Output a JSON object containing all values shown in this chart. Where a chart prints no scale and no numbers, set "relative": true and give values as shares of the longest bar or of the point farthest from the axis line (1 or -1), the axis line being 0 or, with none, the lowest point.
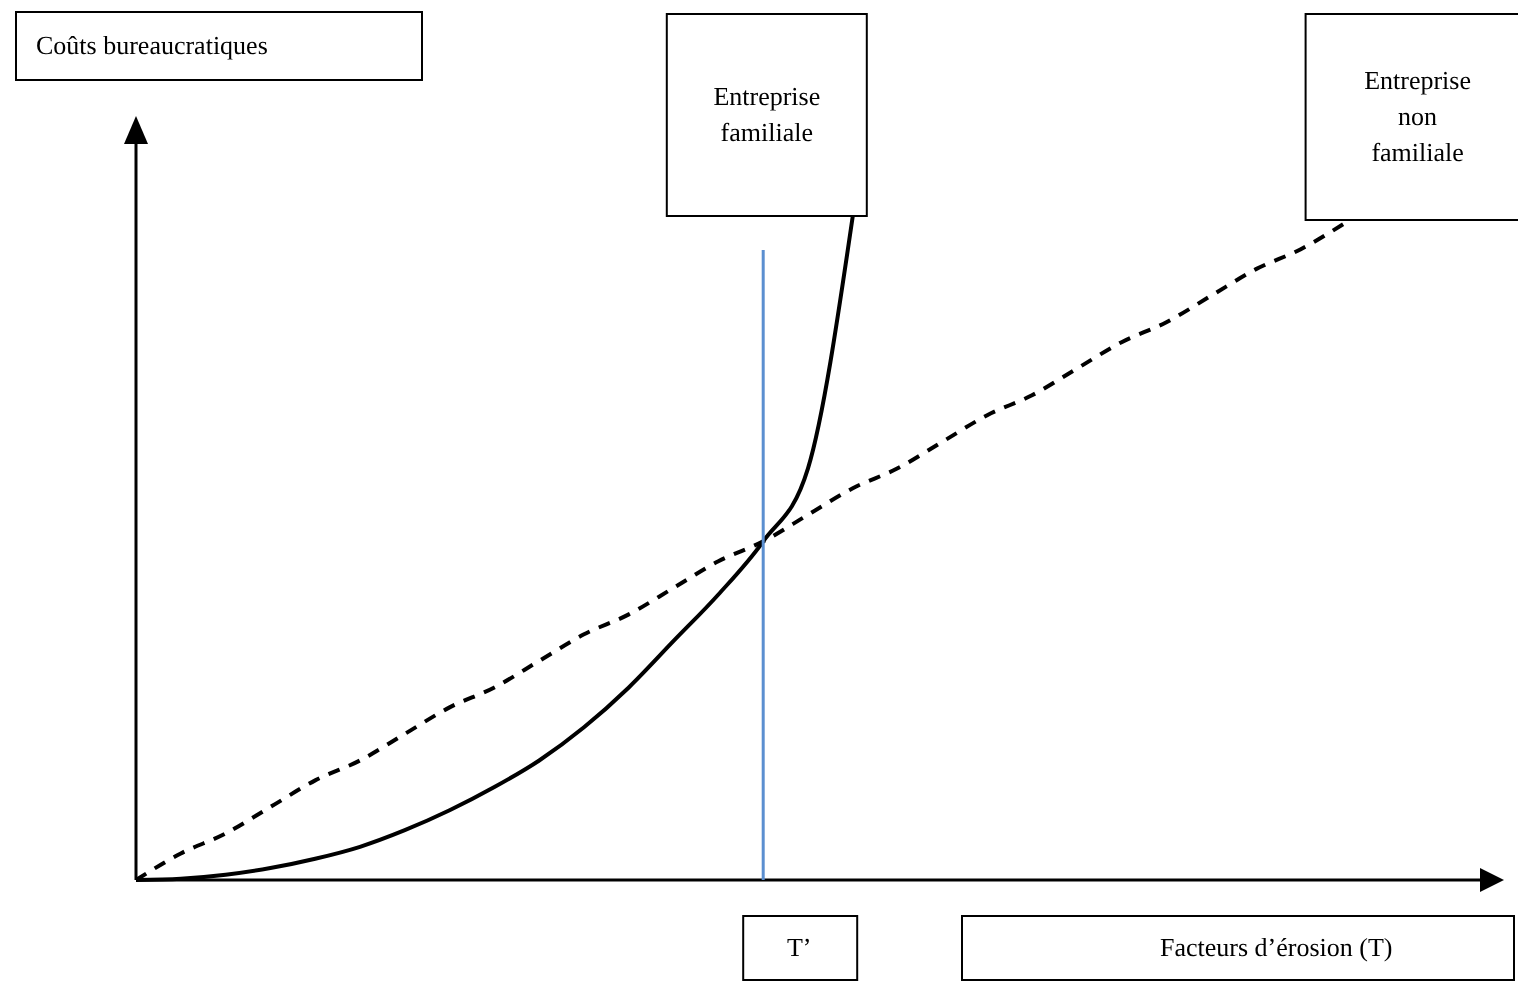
{
  "chart_data": {
    "type": "line",
    "relative": true,
    "xlabel": "Facteurs d’érosion (T)",
    "annotations": [
      "Coûts bureaucratiques",
      "T’"
    ],
    "categories": [
      null,
      null,
      null,
      null,
      null,
      null,
      null,
      null,
      null,
      null,
      null,
      null,
      null,
      null,
      null,
      null,
      null,
      null,
      null,
      null,
      null,
      null,
      null,
      null,
      null,
      null,
      null,
      null,
      null,
      null,
      null
    ],
    "series": [
      {
        "name": "Entreprise familiale",
        "color": "#000000",
        "line_style": "solid",
        "values": [
          0,
          0.002,
          0.008,
          0.018,
          0.032,
          0.05,
          0.075,
          0.105,
          0.14,
          0.18,
          0.23,
          0.29,
          0.36,
          0.43,
          0.51,
          0.62,
          1.0,
          null,
          null,
          null,
          null,
          null,
          null,
          null,
          null,
          null,
          null,
          null,
          null,
          null,
          null
        ]
      },
      {
        "name": "Entreprise non familiale",
        "color": "#000000",
        "line_style": "dashed",
        "values": [
          0,
          0.04,
          0.07,
          0.11,
          0.15,
          0.18,
          0.22,
          0.26,
          0.29,
          0.33,
          0.37,
          0.4,
          0.44,
          0.48,
          0.51,
          0.55,
          0.59,
          0.62,
          0.66,
          0.7,
          0.73,
          0.77,
          0.81,
          0.84,
          0.88,
          0.92,
          0.95,
          0.99,
          null,
          null,
          null
        ]
      }
    ],
    "marker": "none"
  }
}
